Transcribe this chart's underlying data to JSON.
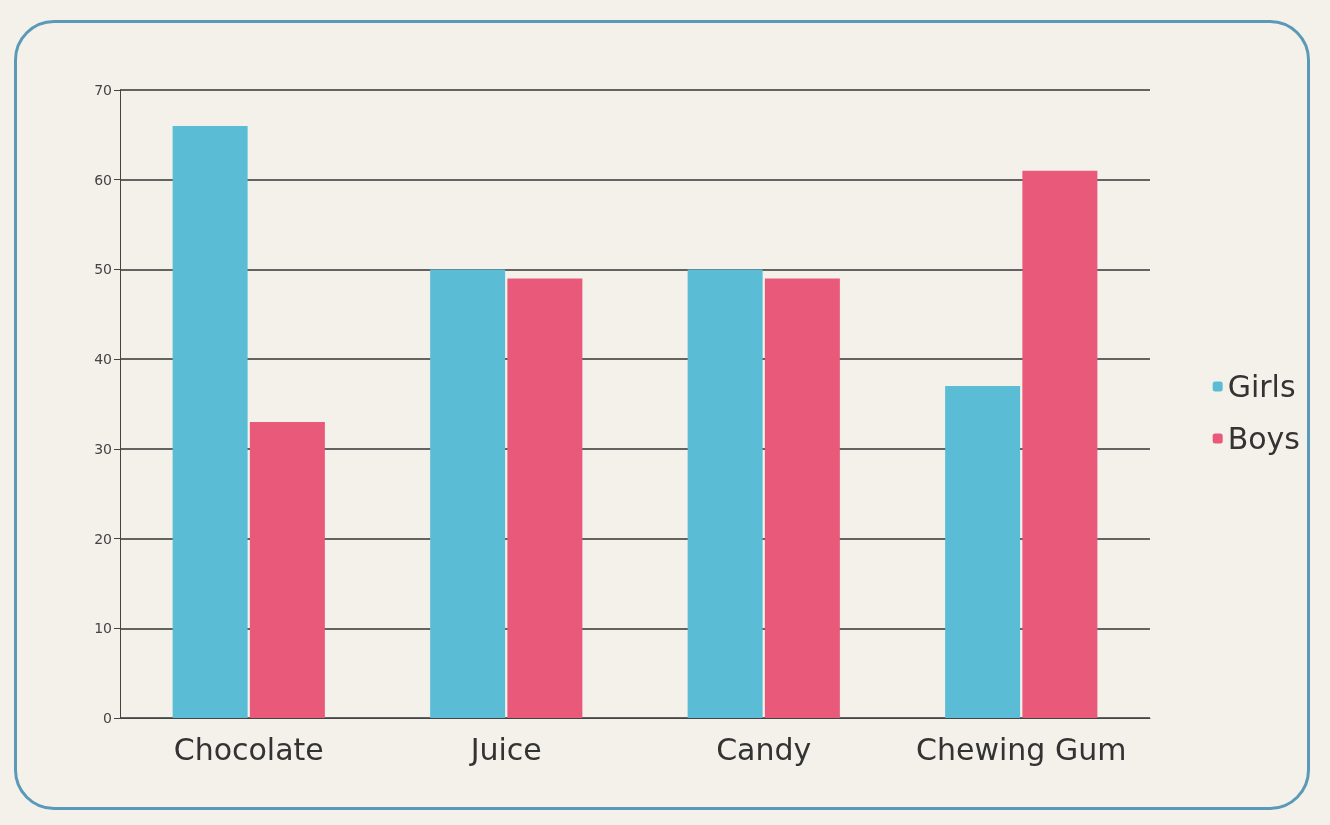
{
  "chart_data": {
    "type": "bar",
    "categories": [
      "Chocolate",
      "Juice",
      "Candy",
      "Chewing Gum"
    ],
    "series": [
      {
        "name": "Girls",
        "color": "#5bbcd6",
        "values": [
          66,
          50,
          50,
          37
        ]
      },
      {
        "name": "Boys",
        "color": "#e8597a",
        "values": [
          33,
          49,
          49,
          61
        ]
      }
    ],
    "ylim": [
      0,
      70
    ],
    "yticks": [
      0,
      10,
      20,
      30,
      40,
      50,
      60,
      70
    ],
    "grid": "y",
    "legend": "right"
  }
}
